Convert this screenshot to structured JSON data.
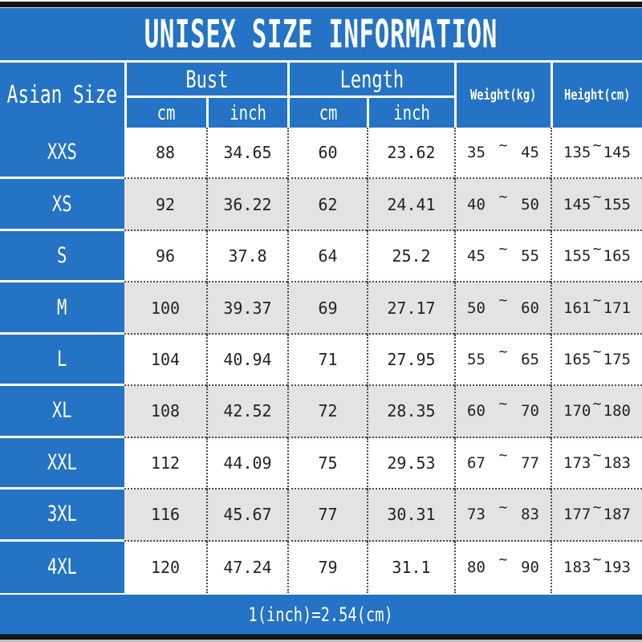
{
  "title": "UNISEX SIZE INFORMATION",
  "footer_note": "1(inch)=2.54(cm)",
  "colors": {
    "accent_blue": "#2473c4",
    "alt_row_gray": "#e4e2e3",
    "row_white": "#ffffff",
    "frame_black": "#151515",
    "data_text": "#222222"
  },
  "labels": {
    "asian_size": "Asian Size",
    "bust": "Bust",
    "length": "Length",
    "cm": "cm",
    "inch": "inch",
    "weight": "Weight(kg)",
    "height": "Height(cm)",
    "tilde": "~"
  },
  "chart_data": {
    "type": "table",
    "title": "UNISEX SIZE INFORMATION",
    "column_groups": [
      {
        "label": "Bust",
        "sub": [
          "cm",
          "inch"
        ]
      },
      {
        "label": "Length",
        "sub": [
          "cm",
          "inch"
        ]
      }
    ],
    "columns": [
      "Asian Size",
      "Bust cm",
      "Bust inch",
      "Length cm",
      "Length inch",
      "Weight(kg)",
      "Height(cm)"
    ],
    "rows": [
      {
        "size": "XXS",
        "bust_cm": "88",
        "bust_inch": "34.65",
        "length_cm": "60",
        "length_inch": "23.62",
        "weight_kg": {
          "min": "35",
          "max": "45"
        },
        "height_cm": {
          "min": "135",
          "max": "145"
        }
      },
      {
        "size": "XS",
        "bust_cm": "92",
        "bust_inch": "36.22",
        "length_cm": "62",
        "length_inch": "24.41",
        "weight_kg": {
          "min": "40",
          "max": "50"
        },
        "height_cm": {
          "min": "145",
          "max": "155"
        }
      },
      {
        "size": "S",
        "bust_cm": "96",
        "bust_inch": "37.8",
        "length_cm": "64",
        "length_inch": "25.2",
        "weight_kg": {
          "min": "45",
          "max": "55"
        },
        "height_cm": {
          "min": "155",
          "max": "165"
        }
      },
      {
        "size": "M",
        "bust_cm": "100",
        "bust_inch": "39.37",
        "length_cm": "69",
        "length_inch": "27.17",
        "weight_kg": {
          "min": "50",
          "max": "60"
        },
        "height_cm": {
          "min": "161",
          "max": "171"
        }
      },
      {
        "size": "L",
        "bust_cm": "104",
        "bust_inch": "40.94",
        "length_cm": "71",
        "length_inch": "27.95",
        "weight_kg": {
          "min": "55",
          "max": "65"
        },
        "height_cm": {
          "min": "165",
          "max": "175"
        }
      },
      {
        "size": "XL",
        "bust_cm": "108",
        "bust_inch": "42.52",
        "length_cm": "72",
        "length_inch": "28.35",
        "weight_kg": {
          "min": "60",
          "max": "70"
        },
        "height_cm": {
          "min": "170",
          "max": "180"
        }
      },
      {
        "size": "XXL",
        "bust_cm": "112",
        "bust_inch": "44.09",
        "length_cm": "75",
        "length_inch": "29.53",
        "weight_kg": {
          "min": "67",
          "max": "77"
        },
        "height_cm": {
          "min": "173",
          "max": "183"
        }
      },
      {
        "size": "3XL",
        "bust_cm": "116",
        "bust_inch": "45.67",
        "length_cm": "77",
        "length_inch": "30.31",
        "weight_kg": {
          "min": "73",
          "max": "83"
        },
        "height_cm": {
          "min": "177",
          "max": "187"
        }
      },
      {
        "size": "4XL",
        "bust_cm": "120",
        "bust_inch": "47.24",
        "length_cm": "79",
        "length_inch": "31.1",
        "weight_kg": {
          "min": "80",
          "max": "90"
        },
        "height_cm": {
          "min": "183",
          "max": "193"
        }
      }
    ],
    "footnote": "1(inch)=2.54(cm)",
    "layout": {
      "header_background": "#2473c4",
      "alternating_rows": true,
      "first_data_row_background": "#ffffff"
    }
  }
}
